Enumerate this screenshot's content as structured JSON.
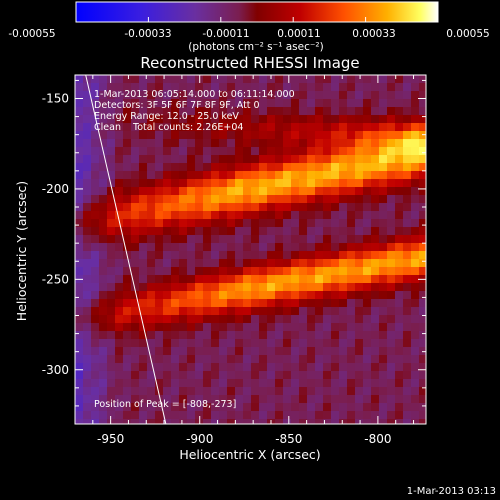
{
  "colorbar": {
    "tick_labels": [
      "-0.00055",
      "-0.00033",
      "-0.00011",
      "0.00011",
      "0.00033",
      "0.00055"
    ],
    "units": "(photons cm⁻² s⁻¹ asec⁻²)",
    "range": [
      -0.00055,
      0.00055
    ]
  },
  "chart_data": {
    "type": "heatmap",
    "title": "Reconstructed RHESSI Image",
    "xlabel": "Heliocentric X (arcsec)",
    "ylabel": "Heliocentric Y (arcsec)",
    "xlim": [
      -970,
      -773
    ],
    "ylim": [
      -330,
      -137
    ],
    "xticks": [
      -950,
      -900,
      -850,
      -800
    ],
    "yticks": [
      -150,
      -200,
      -250,
      -300
    ],
    "annotations": [
      "1-Mar-2013 06:05:14.000 to 06:11:14.000",
      "Detectors: 3F 5F 6F 7F 8F 9F, Att 0",
      "Energy Range: 12.0 - 25.0 keV",
      "Clean    Total counts: 2.26E+04"
    ],
    "peak_label": "Position of Peak = [-808,-273]",
    "peak": [
      -808,
      -273
    ],
    "limb_line": [
      [
        -964,
        -137
      ],
      [
        -919,
        -330
      ]
    ],
    "colormap": "blue-purple-red-yellow-white",
    "footer_timestamp": "1-Mar-2013 03:13"
  }
}
